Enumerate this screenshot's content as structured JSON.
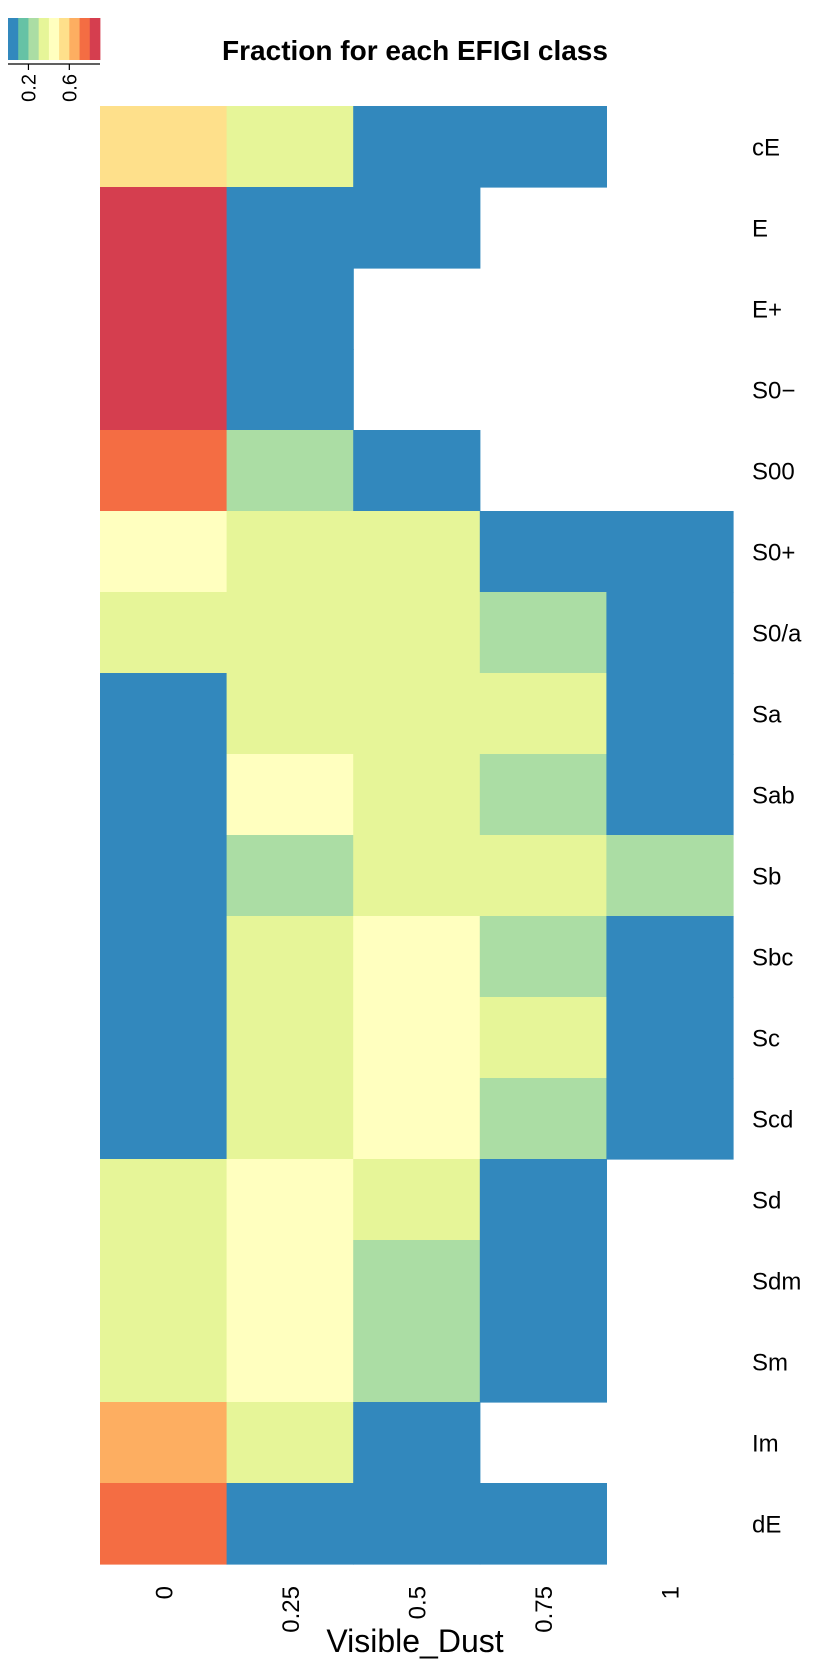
{
  "chart_data": {
    "type": "heatmap",
    "title": "Fraction for each EFIGI class",
    "xlabel": "Visible_Dust",
    "ylabel": "",
    "x_categories": [
      "0",
      "0.25",
      "0.5",
      "0.75",
      "1"
    ],
    "y_categories": [
      "cE",
      "E",
      "E+",
      "S0−",
      "S00",
      "S0+",
      "S0/a",
      "Sa",
      "Sab",
      "Sb",
      "Sbc",
      "Sc",
      "Scd",
      "Sd",
      "Sdm",
      "Sm",
      "Im",
      "dE"
    ],
    "values": [
      [
        0.55,
        0.3,
        0.05,
        0.05,
        null
      ],
      [
        0.9,
        0.05,
        0.05,
        null,
        null
      ],
      [
        0.9,
        0.05,
        null,
        null,
        null
      ],
      [
        0.9,
        0.05,
        null,
        null,
        null
      ],
      [
        0.75,
        0.2,
        0.05,
        null,
        null
      ],
      [
        0.4,
        0.3,
        0.3,
        0.05,
        0.05
      ],
      [
        0.3,
        0.3,
        0.35,
        0.2,
        0.05
      ],
      [
        0.05,
        0.3,
        0.35,
        0.3,
        0.05
      ],
      [
        0.05,
        0.4,
        0.35,
        0.2,
        0.05
      ],
      [
        0.05,
        0.2,
        0.35,
        0.35,
        0.2
      ],
      [
        0.05,
        0.3,
        0.4,
        0.2,
        0.05
      ],
      [
        0.05,
        0.3,
        0.45,
        0.3,
        0.05
      ],
      [
        0.05,
        0.35,
        0.4,
        0.2,
        0.05
      ],
      [
        0.3,
        0.45,
        0.3,
        0.05,
        null
      ],
      [
        0.35,
        0.45,
        0.2,
        0.05,
        null
      ],
      [
        0.35,
        0.45,
        0.2,
        0.05,
        null
      ],
      [
        0.7,
        0.3,
        0.05,
        null,
        null
      ],
      [
        0.75,
        0.05,
        0.05,
        0.05,
        null
      ]
    ],
    "color_scale": {
      "palette": [
        "#3288bd",
        "#66c2a5",
        "#abdda4",
        "#e6f598",
        "#ffffbf",
        "#fee08b",
        "#fdae61",
        "#f46d43",
        "#d53e4f"
      ],
      "domain": [
        0.0,
        0.9
      ],
      "ticks": [
        "0.2",
        "0.6"
      ],
      "tick_values": [
        0.2,
        0.6
      ],
      "legend_position": "top-left"
    },
    "missing_color": "#ffffff"
  }
}
